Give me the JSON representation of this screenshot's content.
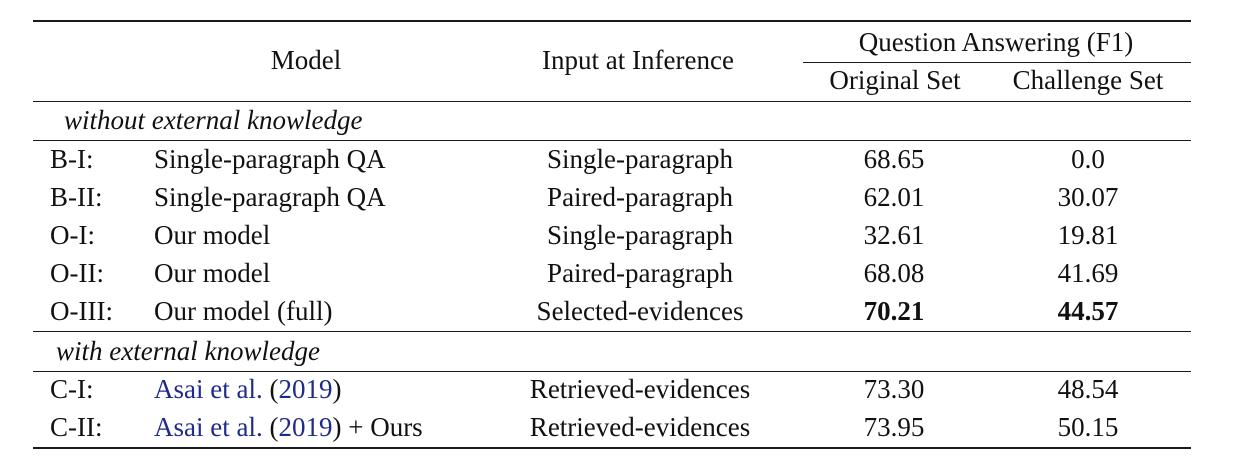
{
  "header": {
    "model": "Model",
    "input": "Input at Inference",
    "qa": "Question Answering (F1)",
    "original": "Original Set",
    "challenge": "Challenge Set"
  },
  "sections": [
    {
      "title": "without external knowledge",
      "rows": [
        {
          "id": "B-I:",
          "model": "Single-paragraph QA",
          "input": "Single-paragraph",
          "original": "68.65",
          "challenge": "0.0"
        },
        {
          "id": "B-II:",
          "model": "Single-paragraph QA",
          "input": "Paired-paragraph",
          "original": "62.01",
          "challenge": "30.07"
        },
        {
          "id": "O-I:",
          "model": "Our model",
          "input": "Single-paragraph",
          "original": "32.61",
          "challenge": "19.81"
        },
        {
          "id": "O-II:",
          "model": "Our model",
          "input": "Paired-paragraph",
          "original": "68.08",
          "challenge": "41.69"
        },
        {
          "id": "O-III:",
          "model": "Our model (full)",
          "input": "Selected-evidences",
          "original": "70.21",
          "challenge": "44.57"
        }
      ]
    },
    {
      "title": "with external knowledge",
      "rows": [
        {
          "id": "C-I:",
          "model_cite": "Asai et al.",
          "model_year": "2019",
          "model_suffix": "",
          "input": "Retrieved-evidences",
          "original": "73.30",
          "challenge": "48.54"
        },
        {
          "id": "C-II:",
          "model_cite": "Asai et al.",
          "model_year": "2019",
          "model_suffix": "+ Ours",
          "input": "Retrieved-evidences",
          "original": "73.95",
          "challenge": "50.15"
        }
      ]
    }
  ]
}
